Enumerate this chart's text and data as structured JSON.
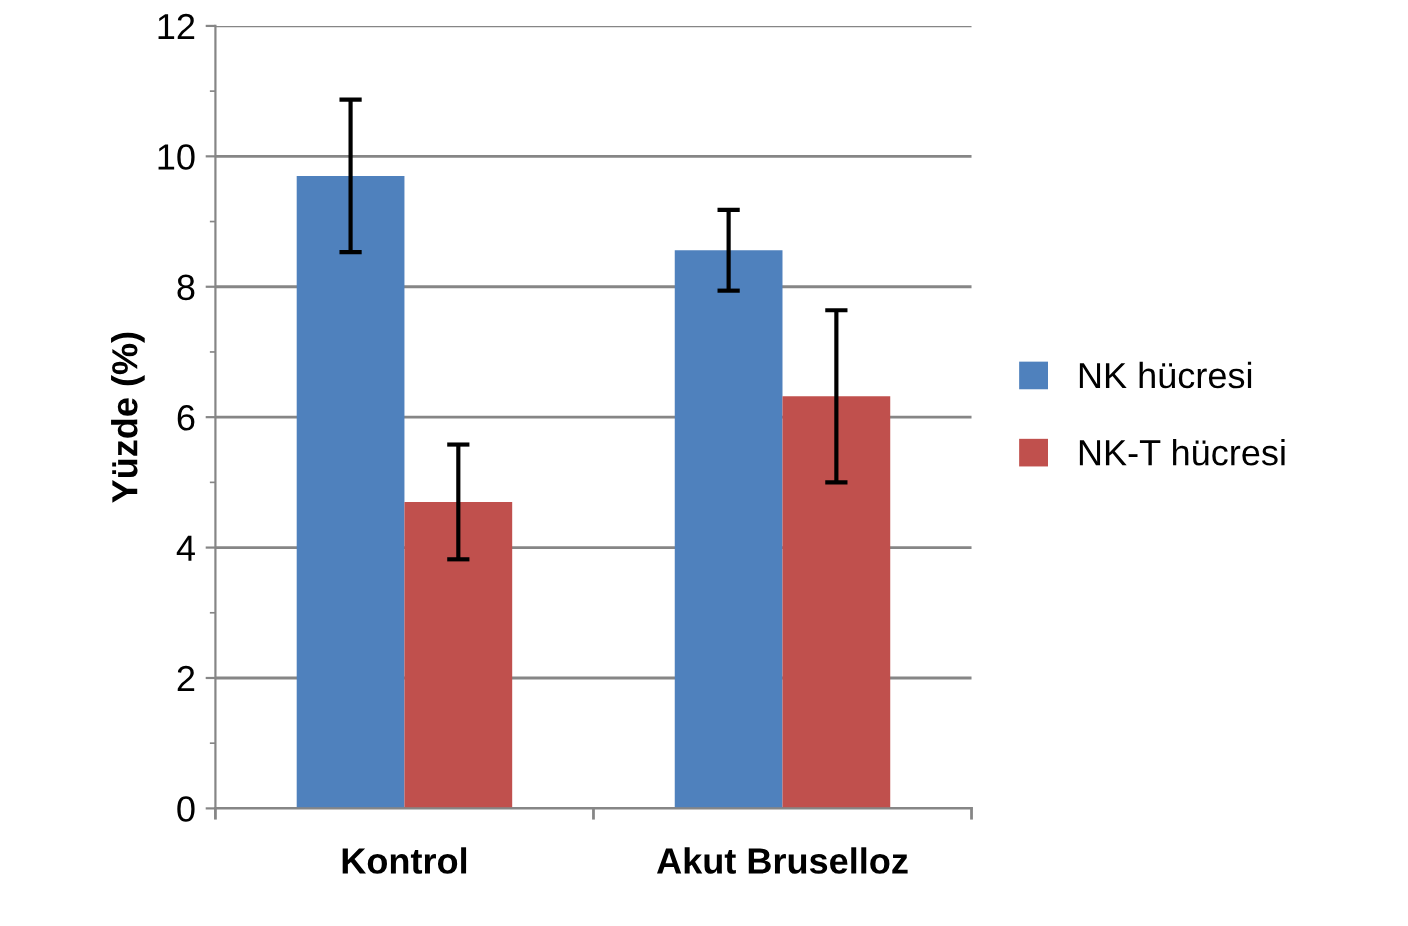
{
  "chart_data": {
    "type": "bar",
    "ylabel": "Yüzde (%)",
    "categories": [
      "Kontrol",
      "Akut Bruselloz"
    ],
    "series": [
      {
        "name": "NK hücresi",
        "color": "#4f81bd",
        "values": [
          9.7,
          8.56
        ],
        "errors": [
          1.17,
          0.62
        ]
      },
      {
        "name": "NK-T hücresi",
        "color": "#c0504d",
        "values": [
          4.7,
          6.32
        ],
        "errors": [
          0.88,
          1.32
        ]
      }
    ],
    "ylim": [
      0,
      12
    ],
    "yticks": [
      0,
      2,
      4,
      6,
      8,
      10,
      12
    ],
    "grid": "y",
    "legend": "right"
  }
}
